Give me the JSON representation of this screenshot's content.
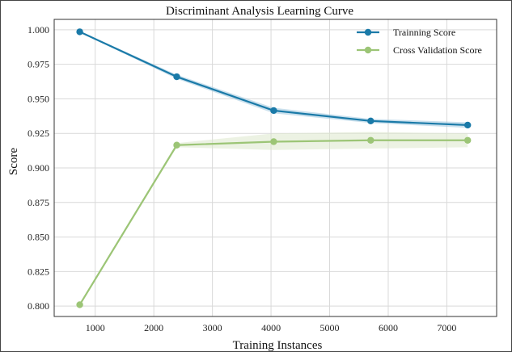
{
  "chart_data": {
    "type": "line",
    "title": "Discriminant Analysis Learning Curve",
    "xlabel": "Training Instances",
    "ylabel": "Score",
    "xlim": [
      300,
      7850
    ],
    "ylim": [
      0.7925,
      1.0075
    ],
    "x_ticks": [
      1000,
      2000,
      3000,
      4000,
      5000,
      6000,
      7000
    ],
    "y_ticks": [
      0.8,
      0.825,
      0.85,
      0.875,
      0.9,
      0.925,
      0.95,
      0.975,
      1.0
    ],
    "y_tick_labels": [
      "0.800",
      "0.825",
      "0.850",
      "0.875",
      "0.900",
      "0.925",
      "0.950",
      "0.975",
      "1.000"
    ],
    "grid": true,
    "legend_position": "top-right",
    "x": [
      736,
      2391,
      4046,
      5701,
      7356
    ],
    "series": [
      {
        "name": "Trainning Score",
        "color": "#1a7aa8",
        "band_color": "#9ec6de",
        "values": [
          0.9985,
          0.966,
          0.9415,
          0.934,
          0.931
        ],
        "upper": [
          0.999,
          0.9675,
          0.9435,
          0.9355,
          0.933
        ],
        "lower": [
          0.998,
          0.9645,
          0.9395,
          0.9325,
          0.929
        ]
      },
      {
        "name": "Cross Validation Score",
        "color": "#9cc576",
        "band_color": "#dde8cc",
        "values": [
          0.801,
          0.9165,
          0.919,
          0.92,
          0.92
        ],
        "upper": [
          0.802,
          0.918,
          0.925,
          0.926,
          0.925
        ],
        "lower": [
          0.8,
          0.915,
          0.913,
          0.914,
          0.915
        ]
      }
    ]
  }
}
